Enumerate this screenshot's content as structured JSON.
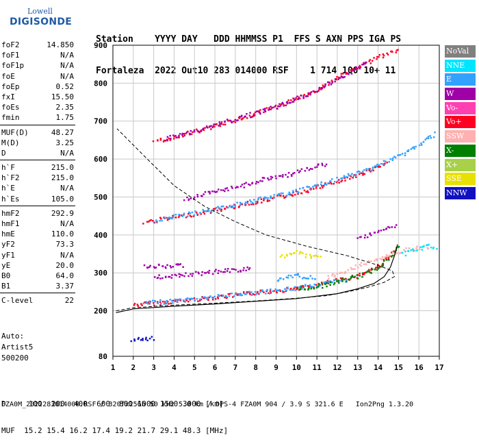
{
  "logo": {
    "line1": "Lowell",
    "line2": "DIGISONDE"
  },
  "header": {
    "row1": "Station    YYYY DAY   DDD HHMMSS P1  FFS S AXN PPS IGA PS",
    "row2": "Fortaleza  2022 Out10 283 014000 RSF    1 714 100 10+ 11"
  },
  "params": [
    [
      {
        "name": "foF2",
        "value": "14.850"
      },
      {
        "name": "foF1",
        "value": "N/A"
      },
      {
        "name": "foF1p",
        "value": "N/A"
      },
      {
        "name": "foE",
        "value": "N/A"
      },
      {
        "name": "foEp",
        "value": "0.52"
      },
      {
        "name": "fxI",
        "value": "15.50"
      },
      {
        "name": "foEs",
        "value": "2.35"
      },
      {
        "name": "fmin",
        "value": "1.75"
      }
    ],
    [
      {
        "name": "MUF(D)",
        "value": "48.27"
      },
      {
        "name": "M(D)",
        "value": "3.25"
      },
      {
        "name": "D",
        "value": "N/A"
      }
    ],
    [
      {
        "name": "h`F",
        "value": "215.0"
      },
      {
        "name": "h`F2",
        "value": "215.0"
      },
      {
        "name": "h`E",
        "value": "N/A"
      },
      {
        "name": "h`Es",
        "value": "105.0"
      }
    ],
    [
      {
        "name": "hmF2",
        "value": "292.9"
      },
      {
        "name": "hmF1",
        "value": "N/A"
      },
      {
        "name": "hmE",
        "value": "110.0"
      },
      {
        "name": "yF2",
        "value": "73.3"
      },
      {
        "name": "yF1",
        "value": "N/A"
      },
      {
        "name": "yE",
        "value": "20.0"
      },
      {
        "name": "B0",
        "value": "64.0"
      },
      {
        "name": "B1",
        "value": "3.37"
      }
    ],
    [
      {
        "name": "C-level",
        "value": "22"
      }
    ]
  ],
  "auto": {
    "line1": "Auto:",
    "line2": "Artist5",
    "line3": "500200"
  },
  "legend": [
    {
      "label": "NoVal",
      "color": "#808080"
    },
    {
      "label": "NNE",
      "color": "#00e5ff"
    },
    {
      "label": "E",
      "color": "#33a1ff"
    },
    {
      "label": "W",
      "color": "#a000a8"
    },
    {
      "label": "Vo-",
      "color": "#ff40b0"
    },
    {
      "label": "Vo+",
      "color": "#ff0022"
    },
    {
      "label": "SSW",
      "color": "#ffb0b0"
    },
    {
      "label": "X-",
      "color": "#008000"
    },
    {
      "label": "X+",
      "color": "#a8d048"
    },
    {
      "label": "SSE",
      "color": "#e8e000"
    },
    {
      "label": "NNW",
      "color": "#1010c0"
    }
  ],
  "muf": {
    "row1": "D     100  200  400  600  800 1000 1500 3000 [km]",
    "row2": "MUF  15.2 15.4 16.2 17.4 19.2 21.7 29.1 48.3 [MHz]"
  },
  "footer": "FZA0M_2022283014000.RSF / 320fx256h 50 kHz 5.0 km / DPS-4 FZA0M 904 / 3.9 S 321.6 E   Ion2Png 1.3.20",
  "chart_data": {
    "type": "scatter",
    "xlim": [
      1,
      17
    ],
    "ylim": [
      80,
      900
    ],
    "x_ticks": [
      1,
      2,
      3,
      4,
      5,
      6,
      7,
      8,
      9,
      10,
      11,
      12,
      13,
      14,
      15,
      16,
      17
    ],
    "y_ticks": [
      80,
      200,
      300,
      400,
      500,
      600,
      700,
      800,
      900
    ],
    "grid": true,
    "profile_curve": [
      [
        1.15,
        200
      ],
      [
        2,
        208
      ],
      [
        4,
        215
      ],
      [
        6,
        220
      ],
      [
        8,
        226
      ],
      [
        10,
        233
      ],
      [
        11.5,
        240
      ],
      [
        12.5,
        250
      ],
      [
        13.5,
        262
      ],
      [
        14.3,
        275
      ],
      [
        14.8,
        290
      ],
      [
        14.7,
        305
      ],
      [
        14,
        320
      ],
      [
        12.5,
        345
      ],
      [
        10.5,
        370
      ],
      [
        8.5,
        400
      ],
      [
        7,
        435
      ],
      [
        5.5,
        475
      ],
      [
        4,
        530
      ],
      [
        2.5,
        610
      ],
      [
        1.2,
        680
      ]
    ],
    "muf_curve": [
      [
        1.15,
        195
      ],
      [
        2,
        205
      ],
      [
        4,
        212
      ],
      [
        6,
        218
      ],
      [
        8,
        225
      ],
      [
        10,
        232
      ],
      [
        12,
        245
      ],
      [
        13,
        258
      ],
      [
        13.8,
        272
      ],
      [
        14.3,
        290
      ],
      [
        14.6,
        315
      ],
      [
        14.8,
        345
      ],
      [
        14.95,
        375
      ]
    ],
    "traces": [
      {
        "color": "#ff0022",
        "points": [
          [
            2.0,
            218
          ],
          [
            3.5,
            224
          ],
          [
            5,
            232
          ],
          [
            6.5,
            240
          ],
          [
            8,
            250
          ],
          [
            9.5,
            258
          ],
          [
            11,
            270
          ],
          [
            12,
            282
          ],
          [
            13,
            295
          ],
          [
            14,
            320
          ],
          [
            14.8,
            360
          ]
        ]
      },
      {
        "color": "#33a1ff",
        "points": [
          [
            2.5,
            222
          ],
          [
            4,
            228
          ],
          [
            5.5,
            236
          ],
          [
            7,
            245
          ],
          [
            8.5,
            252
          ],
          [
            10,
            262
          ],
          [
            11.5,
            275
          ],
          [
            12.5,
            285
          ]
        ]
      },
      {
        "color": "#008000",
        "points": [
          [
            10,
            258
          ],
          [
            11,
            266
          ],
          [
            12,
            278
          ],
          [
            13,
            292
          ],
          [
            13.8,
            310
          ],
          [
            14.5,
            340
          ],
          [
            15,
            375
          ]
        ]
      },
      {
        "color": "#ff0022",
        "points": [
          [
            2.5,
            435
          ],
          [
            4,
            448
          ],
          [
            5.5,
            462
          ],
          [
            7,
            478
          ],
          [
            8.5,
            495
          ],
          [
            10,
            512
          ],
          [
            11.5,
            535
          ],
          [
            13,
            560
          ],
          [
            14.5,
            590
          ]
        ]
      },
      {
        "color": "#33a1ff",
        "points": [
          [
            3,
            440
          ],
          [
            4.5,
            455
          ],
          [
            6,
            470
          ],
          [
            7.5,
            488
          ],
          [
            9,
            505
          ],
          [
            10.5,
            525
          ],
          [
            12,
            548
          ],
          [
            13.5,
            575
          ],
          [
            15,
            610
          ],
          [
            16,
            640
          ],
          [
            16.8,
            670
          ]
        ]
      },
      {
        "color": "#a000a8",
        "points": [
          [
            4.5,
            495
          ],
          [
            5.5,
            510
          ],
          [
            6.5,
            520
          ],
          [
            7.5,
            535
          ],
          [
            8.5,
            550
          ],
          [
            9.5,
            560
          ],
          [
            10.5,
            575
          ],
          [
            11.5,
            590
          ]
        ]
      },
      {
        "color": "#ff0022",
        "points": [
          [
            3,
            648
          ],
          [
            4,
            660
          ],
          [
            5,
            675
          ],
          [
            6,
            690
          ],
          [
            7,
            705
          ],
          [
            8,
            722
          ],
          [
            9,
            740
          ],
          [
            10,
            760
          ],
          [
            11,
            785
          ],
          [
            12,
            815
          ],
          [
            13,
            845
          ],
          [
            14,
            870
          ],
          [
            15,
            890
          ]
        ]
      },
      {
        "color": "#a000a8",
        "points": [
          [
            3.5,
            655
          ],
          [
            4.5,
            668
          ],
          [
            5.5,
            684
          ],
          [
            6.5,
            700
          ],
          [
            7.5,
            715
          ],
          [
            8.5,
            732
          ],
          [
            9.5,
            750
          ],
          [
            10.5,
            772
          ],
          [
            11.5,
            800
          ],
          [
            12.5,
            828
          ],
          [
            13.5,
            860
          ]
        ]
      },
      {
        "color": "#a000a8",
        "points": [
          [
            3,
            290
          ],
          [
            4,
            295
          ],
          [
            5,
            300
          ],
          [
            6,
            305
          ],
          [
            7,
            310
          ],
          [
            7.8,
            313
          ]
        ]
      },
      {
        "color": "#a000a8",
        "points": [
          [
            2.5,
            318
          ],
          [
            3.5,
            320
          ],
          [
            4.5,
            322
          ]
        ]
      },
      {
        "color": "#ffb0b0",
        "points": [
          [
            11.5,
            290
          ],
          [
            12.5,
            310
          ],
          [
            13.5,
            330
          ],
          [
            14.5,
            350
          ],
          [
            15.5,
            365
          ],
          [
            16.5,
            370
          ]
        ]
      },
      {
        "color": "#00e5ff",
        "points": [
          [
            15.2,
            350
          ],
          [
            15.8,
            365
          ],
          [
            16.4,
            372
          ],
          [
            16.9,
            368
          ]
        ]
      },
      {
        "color": "#e8e000",
        "points": [
          [
            9.2,
            345
          ],
          [
            9.6,
            352
          ],
          [
            10,
            356
          ],
          [
            10.4,
            348
          ],
          [
            10.8,
            345
          ],
          [
            11.2,
            350
          ]
        ]
      },
      {
        "color": "#33a1ff",
        "points": [
          [
            9,
            285
          ],
          [
            9.5,
            292
          ],
          [
            10,
            296
          ],
          [
            10.5,
            290
          ],
          [
            11,
            288
          ]
        ]
      },
      {
        "color": "#a000a8",
        "points": [
          [
            13,
            390
          ],
          [
            13.5,
            400
          ],
          [
            14,
            410
          ],
          [
            14.5,
            420
          ],
          [
            14.9,
            430
          ]
        ]
      },
      {
        "color": "#1010c0",
        "points": [
          [
            1.9,
            125
          ],
          [
            2.3,
            127
          ],
          [
            2.7,
            128
          ],
          [
            3.0,
            130
          ]
        ]
      }
    ]
  }
}
